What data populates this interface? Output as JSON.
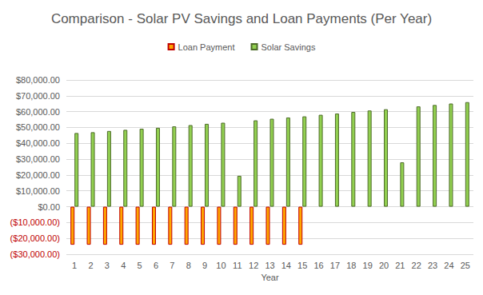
{
  "chart_data": {
    "type": "bar",
    "title": "Comparison - Solar PV Savings and Loan Payments (Per Year)",
    "x_label": "Year",
    "categories": [
      "1",
      "2",
      "3",
      "4",
      "5",
      "6",
      "7",
      "8",
      "9",
      "10",
      "11",
      "12",
      "13",
      "14",
      "15",
      "16",
      "17",
      "18",
      "19",
      "20",
      "21",
      "22",
      "23",
      "24",
      "25"
    ],
    "series": [
      {
        "name": "Loan Payment",
        "color": "#ffa500",
        "values": [
          -24000,
          -24000,
          -24000,
          -24000,
          -24000,
          -24000,
          -24000,
          -24000,
          -24000,
          -24000,
          -24000,
          -24000,
          -24000,
          -24000,
          -24000,
          null,
          null,
          null,
          null,
          null,
          null,
          null,
          null,
          null,
          null
        ]
      },
      {
        "name": "Solar Savings",
        "color": "#92d050",
        "values": [
          46500,
          47000,
          47800,
          48500,
          49200,
          49800,
          50700,
          51500,
          52300,
          53000,
          19500,
          54500,
          55500,
          56300,
          57000,
          58000,
          58800,
          59800,
          60700,
          61500,
          28000,
          63300,
          64200,
          65100,
          66000
        ]
      }
    ],
    "ylim": [
      -30000,
      80000
    ],
    "yticks": [
      {
        "value": -30000,
        "label": "($30,000.00)"
      },
      {
        "value": -20000,
        "label": "($20,000.00)"
      },
      {
        "value": -10000,
        "label": "($10,000.00)"
      },
      {
        "value": 0,
        "label": "$0.00"
      },
      {
        "value": 10000,
        "label": "$10,000.00"
      },
      {
        "value": 20000,
        "label": "$20,000.00"
      },
      {
        "value": 30000,
        "label": "$30,000.00"
      },
      {
        "value": 40000,
        "label": "$40,000.00"
      },
      {
        "value": 50000,
        "label": "$50,000.00"
      },
      {
        "value": 60000,
        "label": "$60,000.00"
      },
      {
        "value": 70000,
        "label": "$70,000.00"
      },
      {
        "value": 80000,
        "label": "$80,000.00"
      }
    ],
    "grid": true,
    "legend": "top"
  }
}
